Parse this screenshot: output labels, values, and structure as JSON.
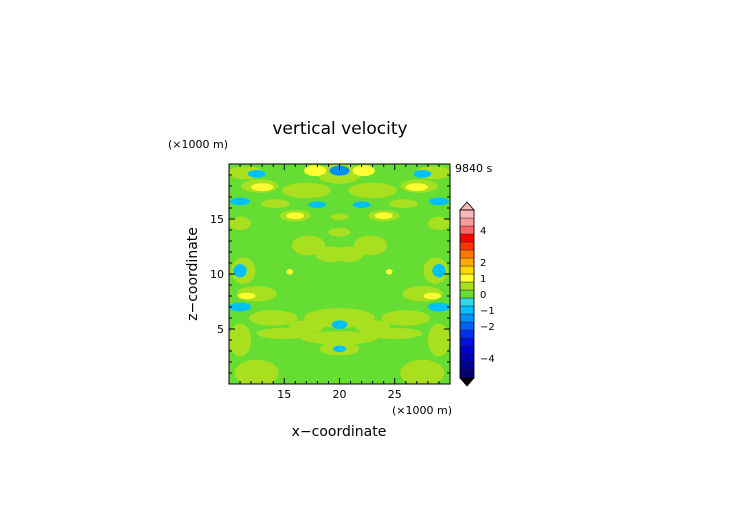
{
  "chart_data": {
    "type": "heatmap",
    "title": "vertical velocity",
    "xlabel": "x−coordinate",
    "ylabel": "z−coordinate",
    "x_unit": "(×1000 m)",
    "y_unit": "(×1000 m)",
    "time_label": "9840 s",
    "xlim": [
      10,
      30
    ],
    "ylim": [
      0,
      20
    ],
    "x_ticks": [
      15,
      20,
      25
    ],
    "y_ticks": [
      5,
      10,
      15
    ],
    "x_tick_labels": [
      "15",
      "20",
      "25"
    ],
    "y_tick_labels": [
      "5",
      "10",
      "15"
    ],
    "colorbar": {
      "levels": [
        -5,
        -4.5,
        -4,
        -3.5,
        -3,
        -2.5,
        -2,
        -1.5,
        -1,
        -0.5,
        0,
        0.5,
        1,
        1.5,
        2,
        2.5,
        3,
        3.5,
        4,
        4.5,
        5
      ],
      "colors": [
        "#000070",
        "#000090",
        "#0000b0",
        "#0000cc",
        "#0010e0",
        "#0030f0",
        "#0060ff",
        "#0090ff",
        "#00c0ff",
        "#33d6e6",
        "#66dd33",
        "#a8e020",
        "#ffff33",
        "#ffd700",
        "#ffaa00",
        "#ff7700",
        "#ff3300",
        "#ff0000",
        "#ff6666",
        "#ff9a9a",
        "#ffb8b8"
      ],
      "tick_values": [
        4,
        2,
        1,
        0,
        -1,
        -2,
        -4
      ],
      "tick_labels": [
        "4",
        "2",
        "1",
        "0",
        "−1",
        "−2",
        "−4"
      ],
      "extend": "both"
    },
    "background_value": 0.3,
    "features": [
      {
        "x": 20,
        "z": 19.4,
        "rx": 0.9,
        "rz": 0.45,
        "value": -1.1
      },
      {
        "x": 20,
        "z": 19.1,
        "rx": 2.0,
        "rz": 0.9,
        "value": 0.55
      },
      {
        "x": 17.8,
        "z": 19.4,
        "rx": 1.0,
        "rz": 0.5,
        "value": 1.3
      },
      {
        "x": 22.2,
        "z": 19.4,
        "rx": 1.0,
        "rz": 0.5,
        "value": 1.3
      },
      {
        "x": 11.5,
        "z": 19.2,
        "rx": 1.6,
        "rz": 0.6,
        "value": 0.55
      },
      {
        "x": 28.5,
        "z": 19.2,
        "rx": 1.6,
        "rz": 0.6,
        "value": 0.55
      },
      {
        "x": 12.5,
        "z": 19.1,
        "rx": 0.8,
        "rz": 0.35,
        "value": -0.9
      },
      {
        "x": 27.5,
        "z": 19.1,
        "rx": 0.8,
        "rz": 0.35,
        "value": -0.9
      },
      {
        "x": 12.8,
        "z": 18.0,
        "rx": 1.7,
        "rz": 0.6,
        "value": 0.55
      },
      {
        "x": 27.2,
        "z": 18.0,
        "rx": 1.7,
        "rz": 0.6,
        "value": 0.55
      },
      {
        "x": 13.0,
        "z": 17.9,
        "rx": 1.0,
        "rz": 0.35,
        "value": 1.3
      },
      {
        "x": 27.0,
        "z": 17.9,
        "rx": 1.0,
        "rz": 0.35,
        "value": 1.3
      },
      {
        "x": 17.0,
        "z": 17.6,
        "rx": 2.2,
        "rz": 0.7,
        "value": 0.55
      },
      {
        "x": 23.0,
        "z": 17.6,
        "rx": 2.2,
        "rz": 0.7,
        "value": 0.55
      },
      {
        "x": 11.0,
        "z": 16.6,
        "rx": 0.9,
        "rz": 0.35,
        "value": -0.8
      },
      {
        "x": 29.0,
        "z": 16.6,
        "rx": 0.9,
        "rz": 0.35,
        "value": -0.8
      },
      {
        "x": 14.2,
        "z": 16.4,
        "rx": 1.3,
        "rz": 0.4,
        "value": 0.55
      },
      {
        "x": 25.8,
        "z": 16.4,
        "rx": 1.3,
        "rz": 0.4,
        "value": 0.55
      },
      {
        "x": 18.0,
        "z": 16.3,
        "rx": 0.8,
        "rz": 0.3,
        "value": -0.8
      },
      {
        "x": 22.0,
        "z": 16.3,
        "rx": 0.8,
        "rz": 0.3,
        "value": -0.8
      },
      {
        "x": 16.0,
        "z": 15.3,
        "rx": 1.4,
        "rz": 0.5,
        "value": 0.55
      },
      {
        "x": 24.0,
        "z": 15.3,
        "rx": 1.4,
        "rz": 0.5,
        "value": 0.55
      },
      {
        "x": 16.0,
        "z": 15.3,
        "rx": 0.8,
        "rz": 0.3,
        "value": 1.3
      },
      {
        "x": 24.0,
        "z": 15.3,
        "rx": 0.8,
        "rz": 0.3,
        "value": 1.3
      },
      {
        "x": 20.0,
        "z": 15.2,
        "rx": 0.8,
        "rz": 0.3,
        "value": 0.55
      },
      {
        "x": 11.0,
        "z": 14.6,
        "rx": 1.0,
        "rz": 0.6,
        "value": 0.55
      },
      {
        "x": 29.0,
        "z": 14.6,
        "rx": 1.0,
        "rz": 0.6,
        "value": 0.55
      },
      {
        "x": 20.0,
        "z": 13.8,
        "rx": 1.0,
        "rz": 0.4,
        "value": 0.55
      },
      {
        "x": 17.2,
        "z": 12.6,
        "rx": 1.5,
        "rz": 0.9,
        "value": 0.55
      },
      {
        "x": 22.8,
        "z": 12.6,
        "rx": 1.5,
        "rz": 0.9,
        "value": 0.55
      },
      {
        "x": 19.2,
        "z": 11.8,
        "rx": 1.4,
        "rz": 0.7,
        "value": 0.55
      },
      {
        "x": 20.8,
        "z": 11.8,
        "rx": 1.4,
        "rz": 0.7,
        "value": 0.55
      },
      {
        "x": 11.3,
        "z": 10.3,
        "rx": 1.1,
        "rz": 1.2,
        "value": 0.55
      },
      {
        "x": 28.7,
        "z": 10.3,
        "rx": 1.1,
        "rz": 1.2,
        "value": 0.55
      },
      {
        "x": 11.0,
        "z": 10.3,
        "rx": 0.6,
        "rz": 0.6,
        "value": -0.9
      },
      {
        "x": 29.0,
        "z": 10.3,
        "rx": 0.6,
        "rz": 0.6,
        "value": -0.9
      },
      {
        "x": 15.5,
        "z": 10.2,
        "rx": 0.3,
        "rz": 0.25,
        "value": 1.3
      },
      {
        "x": 24.5,
        "z": 10.2,
        "rx": 0.3,
        "rz": 0.25,
        "value": 1.3
      },
      {
        "x": 12.5,
        "z": 8.2,
        "rx": 1.8,
        "rz": 0.7,
        "value": 0.55
      },
      {
        "x": 27.5,
        "z": 8.2,
        "rx": 1.8,
        "rz": 0.7,
        "value": 0.55
      },
      {
        "x": 11.6,
        "z": 8.0,
        "rx": 0.8,
        "rz": 0.3,
        "value": 1.3
      },
      {
        "x": 28.4,
        "z": 8.0,
        "rx": 0.8,
        "rz": 0.3,
        "value": 1.3
      },
      {
        "x": 11.0,
        "z": 7.0,
        "rx": 1.0,
        "rz": 0.4,
        "value": -0.8
      },
      {
        "x": 29.0,
        "z": 7.0,
        "rx": 1.0,
        "rz": 0.4,
        "value": -0.8
      },
      {
        "x": 20.0,
        "z": 6.0,
        "rx": 3.2,
        "rz": 0.9,
        "value": 0.55
      },
      {
        "x": 14.0,
        "z": 6.0,
        "rx": 2.2,
        "rz": 0.7,
        "value": 0.55
      },
      {
        "x": 26.0,
        "z": 6.0,
        "rx": 2.2,
        "rz": 0.7,
        "value": 0.55
      },
      {
        "x": 20.0,
        "z": 5.4,
        "rx": 0.7,
        "rz": 0.4,
        "value": -0.9
      },
      {
        "x": 17.0,
        "z": 5.2,
        "rx": 1.6,
        "rz": 0.6,
        "value": 0.55
      },
      {
        "x": 23.0,
        "z": 5.2,
        "rx": 1.6,
        "rz": 0.6,
        "value": 0.55
      },
      {
        "x": 20.0,
        "z": 4.2,
        "rx": 3.5,
        "rz": 0.6,
        "value": 0.55
      },
      {
        "x": 15.0,
        "z": 4.6,
        "rx": 2.5,
        "rz": 0.5,
        "value": 0.55
      },
      {
        "x": 25.0,
        "z": 4.6,
        "rx": 2.5,
        "rz": 0.5,
        "value": 0.55
      },
      {
        "x": 20.0,
        "z": 3.2,
        "rx": 0.6,
        "rz": 0.3,
        "value": -0.9
      },
      {
        "x": 20.0,
        "z": 3.2,
        "rx": 1.8,
        "rz": 0.6,
        "value": 0.55
      },
      {
        "x": 11.0,
        "z": 4.0,
        "rx": 1.0,
        "rz": 1.5,
        "value": 0.55
      },
      {
        "x": 29.0,
        "z": 4.0,
        "rx": 1.0,
        "rz": 1.5,
        "value": 0.55
      },
      {
        "x": 12.5,
        "z": 1.0,
        "rx": 2.0,
        "rz": 1.2,
        "value": 0.55
      },
      {
        "x": 27.5,
        "z": 1.0,
        "rx": 2.0,
        "rz": 1.2,
        "value": 0.55
      }
    ]
  }
}
